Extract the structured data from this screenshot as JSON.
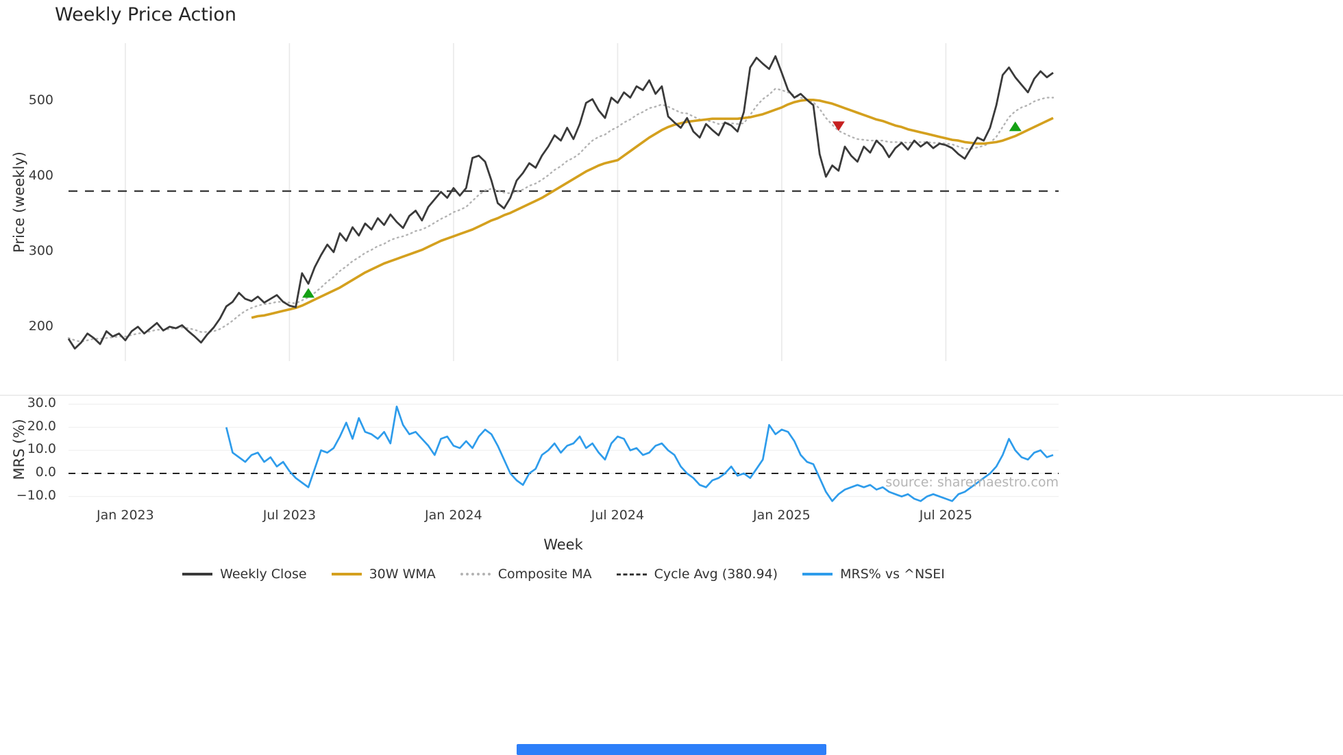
{
  "title": "Weekly Price Action",
  "xlabel": "Week",
  "source": "source: sharemaestro.com",
  "footer": {
    "bar_color": "#2d7ff9"
  },
  "legend": [
    {
      "key": "weekly-close",
      "label": "Weekly Close",
      "type": "solid",
      "color": "#3a3a3a"
    },
    {
      "key": "wma-30w",
      "label": "30W WMA",
      "type": "solid",
      "color": "#d4a01e"
    },
    {
      "key": "composite-ma",
      "label": "Composite MA",
      "type": "dotted",
      "color": "#b3b3b3"
    },
    {
      "key": "cycle-avg",
      "label": "Cycle Avg (380.94)",
      "type": "dashed",
      "color": "#3a3a3a"
    },
    {
      "key": "mrs-pct",
      "label": "MRS% vs ^NSEI",
      "type": "solid",
      "color": "#2e9ceb"
    }
  ],
  "chart_data": {
    "type": "line",
    "title": "Weekly Price Action",
    "xlabel": "Week",
    "x_unit": "weekly",
    "n_weeks": 157,
    "grid": "light vertical gridlines in price panel, light horizontal gridlines in MRS panel",
    "legend_position": "bottom center",
    "x_ticks": [
      {
        "index": 9,
        "label": "Jan 2023"
      },
      {
        "index": 35,
        "label": "Jul 2023"
      },
      {
        "index": 61,
        "label": "Jan 2024"
      },
      {
        "index": 87,
        "label": "Jul 2024"
      },
      {
        "index": 113,
        "label": "Jan 2025"
      },
      {
        "index": 139,
        "label": "Jul 2025"
      }
    ],
    "panels": [
      {
        "name": "price",
        "ylabel": "Price (weekly)",
        "ylim": [
          160,
          577
        ],
        "ticks": [
          {
            "label": "200",
            "value": 200
          },
          {
            "label": "300",
            "value": 300
          },
          {
            "label": "400",
            "value": 400
          },
          {
            "label": "500",
            "value": 500
          }
        ]
      },
      {
        "name": "mrs",
        "ylabel": "MRS (%)",
        "ylim": [
          -14,
          33.6
        ],
        "ticks": [
          {
            "label": "30.0",
            "value": 30
          },
          {
            "label": "20.0",
            "value": 20
          },
          {
            "label": "10.0",
            "value": 10
          },
          {
            "label": "0.0",
            "value": 0
          },
          {
            "label": "−10.0",
            "value": -10
          }
        ],
        "grid_values": [
          30,
          20,
          10,
          0,
          -10
        ]
      }
    ],
    "series": {
      "cycle_avg": 380.94,
      "weekly_close": {
        "start_index": 0,
        "color": "#3a3a3a",
        "values": [
          185,
          172,
          180,
          192,
          186,
          178,
          195,
          188,
          192,
          183,
          195,
          201,
          192,
          199,
          206,
          196,
          201,
          199,
          203,
          195,
          188,
          180,
          191,
          200,
          212,
          228,
          234,
          246,
          238,
          235,
          241,
          233,
          238,
          243,
          234,
          229,
          227,
          272,
          258,
          280,
          296,
          310,
          300,
          325,
          315,
          333,
          322,
          338,
          330,
          345,
          336,
          350,
          340,
          332,
          348,
          355,
          342,
          360,
          370,
          380,
          372,
          385,
          375,
          385,
          425,
          428,
          420,
          395,
          365,
          358,
          372,
          395,
          405,
          418,
          412,
          428,
          440,
          455,
          448,
          465,
          450,
          470,
          498,
          503,
          488,
          478,
          505,
          498,
          512,
          505,
          520,
          515,
          528,
          510,
          520,
          480,
          472,
          465,
          478,
          460,
          452,
          470,
          462,
          455,
          472,
          468,
          460,
          486,
          545,
          558,
          550,
          543,
          560,
          538,
          515,
          505,
          510,
          502,
          495,
          430,
          400,
          415,
          408,
          440,
          428,
          420,
          440,
          432,
          448,
          440,
          426,
          438,
          445,
          436,
          448,
          440,
          446,
          438,
          444,
          442,
          438,
          430,
          424,
          438,
          452,
          448,
          465,
          495,
          535,
          545,
          532,
          522,
          512,
          530,
          540,
          532,
          538
        ]
      },
      "wma_30w": {
        "start_index": 29,
        "color": "#d4a01e",
        "values": [
          213,
          215,
          216,
          218,
          220,
          222,
          224,
          226,
          229,
          233,
          237,
          241,
          245,
          249,
          253,
          258,
          263,
          268,
          273,
          277,
          281,
          285,
          288,
          291,
          294,
          297,
          300,
          303,
          307,
          311,
          315,
          318,
          321,
          324,
          327,
          330,
          334,
          338,
          342,
          345,
          349,
          352,
          356,
          360,
          364,
          368,
          372,
          377,
          382,
          387,
          392,
          397,
          402,
          407,
          411,
          415,
          418,
          420,
          422,
          428,
          434,
          440,
          446,
          452,
          457,
          462,
          466,
          469,
          471,
          473,
          474,
          475,
          476,
          477,
          477,
          477,
          477,
          477,
          478,
          479,
          481,
          483,
          486,
          489,
          492,
          496,
          499,
          501,
          502,
          502,
          501,
          499,
          497,
          494,
          491,
          488,
          485,
          482,
          479,
          476,
          474,
          471,
          468,
          466,
          463,
          461,
          459,
          457,
          455,
          453,
          451,
          449,
          448,
          446,
          445,
          444,
          444,
          445,
          446,
          448,
          451,
          454,
          458,
          462,
          466,
          470,
          474,
          478
        ]
      },
      "composite_ma": {
        "start_index": 0,
        "color": "#b3b3b3",
        "values": [
          186,
          183,
          181,
          183,
          185,
          185,
          186,
          187,
          188,
          188,
          190,
          192,
          193,
          195,
          197,
          197,
          198,
          199,
          200,
          199,
          197,
          194,
          194,
          195,
          198,
          203,
          209,
          216,
          222,
          226,
          229,
          231,
          232,
          234,
          234,
          233,
          232,
          236,
          240,
          246,
          253,
          261,
          267,
          275,
          281,
          288,
          293,
          299,
          303,
          308,
          311,
          316,
          319,
          321,
          324,
          328,
          330,
          334,
          339,
          344,
          348,
          353,
          356,
          360,
          368,
          376,
          382,
          384,
          382,
          379,
          378,
          380,
          383,
          388,
          391,
          396,
          402,
          409,
          414,
          421,
          425,
          431,
          440,
          448,
          453,
          456,
          462,
          466,
          472,
          476,
          482,
          486,
          491,
          493,
          496,
          493,
          489,
          485,
          484,
          480,
          476,
          475,
          473,
          470,
          471,
          471,
          470,
          471,
          482,
          494,
          503,
          509,
          517,
          515,
          512,
          508,
          505,
          502,
          499,
          490,
          478,
          469,
          461,
          457,
          453,
          450,
          449,
          448,
          448,
          448,
          446,
          446,
          446,
          445,
          446,
          446,
          446,
          445,
          445,
          444,
          443,
          440,
          437,
          437,
          439,
          441,
          445,
          453,
          466,
          479,
          487,
          492,
          495,
          500,
          503,
          505,
          505
        ]
      },
      "mrs_pct": {
        "start_index": 25,
        "color": "#2e9ceb",
        "panel": "mrs",
        "values": [
          20,
          9,
          7,
          5,
          8,
          9,
          5,
          7,
          3,
          5,
          1,
          -2,
          -4,
          -6,
          2,
          10,
          9,
          11,
          16,
          22,
          15,
          24,
          18,
          17,
          15,
          18,
          13,
          29,
          21,
          17,
          18,
          15,
          12,
          8,
          15,
          16,
          12,
          11,
          14,
          11,
          16,
          19,
          17,
          12,
          6,
          0,
          -3,
          -5,
          0,
          2,
          8,
          10,
          13,
          9,
          12,
          13,
          16,
          11,
          13,
          9,
          6,
          13,
          16,
          15,
          10,
          11,
          8,
          9,
          12,
          13,
          10,
          8,
          3,
          0,
          -2,
          -5,
          -6,
          -3,
          -2,
          0,
          3,
          -1,
          0,
          -2,
          2,
          6,
          21,
          17,
          19,
          18,
          14,
          8,
          5,
          4,
          -2,
          -8,
          -12,
          -9,
          -7,
          -6,
          -5,
          -6,
          -5,
          -7,
          -6,
          -8,
          -9,
          -10,
          -9,
          -11,
          -12,
          -10,
          -9,
          -10,
          -11,
          -12,
          -9,
          -8,
          -6,
          -4,
          -2,
          0,
          3,
          8,
          15,
          10,
          7,
          6,
          9,
          10,
          7,
          8
        ]
      }
    },
    "signals": {
      "buy_color": "#14a014",
      "sell_color": "#c62020",
      "buy": [
        {
          "index": 38,
          "price": 245
        },
        {
          "index": 150,
          "price": 466
        }
      ],
      "sell": [
        {
          "index": 122,
          "price": 468
        }
      ]
    }
  }
}
